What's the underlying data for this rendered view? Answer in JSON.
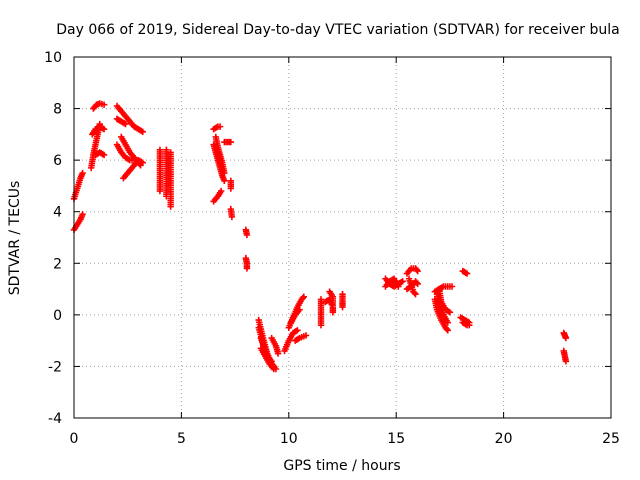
{
  "chart_data": {
    "type": "scatter",
    "title": "Day 066 of 2019, Sidereal Day-to-day VTEC variation (SDTVAR) for receiver bula",
    "xlabel": "GPS time / hours",
    "ylabel": "SDTVAR / TECUs",
    "xlim": [
      0,
      25
    ],
    "ylim": [
      -4,
      10
    ],
    "xticks": [
      "0",
      "5",
      "10",
      "15",
      "20",
      "25"
    ],
    "yticks": [
      "-4",
      "-2",
      "0",
      "2",
      "4",
      "6",
      "8",
      "10"
    ],
    "grid": true,
    "marker": "plus",
    "color": "#ff0000",
    "series": [
      {
        "name": "SDTVAR",
        "segments": [
          [
            [
              0.0,
              4.5
            ],
            [
              0.15,
              4.9
            ],
            [
              0.3,
              5.3
            ],
            [
              0.4,
              5.5
            ]
          ],
          [
            [
              0.0,
              3.3
            ],
            [
              0.15,
              3.5
            ],
            [
              0.3,
              3.7
            ],
            [
              0.4,
              3.9
            ]
          ],
          [
            [
              0.8,
              5.7
            ],
            [
              0.9,
              6.2
            ],
            [
              1.0,
              6.6
            ],
            [
              1.1,
              7.0
            ],
            [
              1.2,
              7.4
            ]
          ],
          [
            [
              0.85,
              7.0
            ],
            [
              1.0,
              7.2
            ],
            [
              1.2,
              7.3
            ],
            [
              1.4,
              7.2
            ]
          ],
          [
            [
              0.9,
              8.0
            ],
            [
              1.05,
              8.15
            ],
            [
              1.2,
              8.2
            ],
            [
              1.4,
              8.15
            ]
          ],
          [
            [
              1.0,
              6.2
            ],
            [
              1.2,
              6.3
            ],
            [
              1.4,
              6.2
            ]
          ],
          [
            [
              2.0,
              8.1
            ],
            [
              2.2,
              7.9
            ],
            [
              2.4,
              7.7
            ],
            [
              2.6,
              7.5
            ],
            [
              2.8,
              7.3
            ],
            [
              3.0,
              7.2
            ],
            [
              3.2,
              7.1
            ]
          ],
          [
            [
              2.0,
              7.6
            ],
            [
              2.2,
              7.5
            ],
            [
              2.4,
              7.4
            ]
          ],
          [
            [
              2.0,
              6.6
            ],
            [
              2.2,
              6.3
            ],
            [
              2.4,
              6.1
            ],
            [
              2.6,
              6.0
            ],
            [
              2.8,
              6.0
            ],
            [
              3.0,
              6.0
            ],
            [
              3.2,
              5.9
            ]
          ],
          [
            [
              2.2,
              6.9
            ],
            [
              2.4,
              6.6
            ],
            [
              2.6,
              6.3
            ],
            [
              2.8,
              6.1
            ],
            [
              3.0,
              5.9
            ],
            [
              3.1,
              5.8
            ]
          ],
          [
            [
              2.3,
              5.3
            ],
            [
              2.5,
              5.5
            ],
            [
              2.7,
              5.7
            ],
            [
              2.9,
              5.9
            ]
          ],
          [
            [
              4.0,
              6.4
            ],
            [
              4.0,
              6.0
            ],
            [
              4.0,
              5.6
            ],
            [
              4.0,
              5.2
            ],
            [
              4.0,
              4.8
            ]
          ],
          [
            [
              4.3,
              6.4
            ],
            [
              4.3,
              6.0
            ],
            [
              4.3,
              5.5
            ],
            [
              4.3,
              5.0
            ],
            [
              4.3,
              4.6
            ]
          ],
          [
            [
              4.5,
              6.3
            ],
            [
              4.5,
              5.8
            ],
            [
              4.5,
              5.2
            ],
            [
              4.5,
              4.6
            ],
            [
              4.5,
              4.2
            ]
          ],
          [
            [
              6.5,
              7.2
            ],
            [
              6.7,
              7.3
            ],
            [
              6.8,
              7.3
            ]
          ],
          [
            [
              6.5,
              6.6
            ],
            [
              6.6,
              6.3
            ],
            [
              6.7,
              6.0
            ],
            [
              6.8,
              5.7
            ],
            [
              6.9,
              5.4
            ],
            [
              7.0,
              5.2
            ]
          ],
          [
            [
              6.6,
              6.9
            ],
            [
              6.7,
              6.5
            ],
            [
              6.8,
              6.2
            ],
            [
              6.9,
              5.9
            ],
            [
              7.0,
              5.5
            ]
          ],
          [
            [
              6.5,
              4.4
            ],
            [
              6.7,
              4.6
            ],
            [
              6.85,
              4.8
            ]
          ],
          [
            [
              7.0,
              6.7
            ],
            [
              7.15,
              6.7
            ],
            [
              7.3,
              6.7
            ]
          ],
          [
            [
              7.3,
              5.2
            ],
            [
              7.3,
              4.9
            ]
          ],
          [
            [
              7.3,
              4.1
            ],
            [
              7.35,
              3.8
            ]
          ],
          [
            [
              8.0,
              3.3
            ],
            [
              8.05,
              3.1
            ]
          ],
          [
            [
              8.0,
              2.2
            ],
            [
              8.05,
              2.0
            ],
            [
              8.05,
              1.8
            ]
          ],
          [
            [
              8.6,
              -0.2
            ],
            [
              8.8,
              -0.9
            ],
            [
              9.0,
              -1.5
            ],
            [
              9.2,
              -1.9
            ],
            [
              9.4,
              -2.1
            ]
          ],
          [
            [
              8.6,
              -0.5
            ],
            [
              8.8,
              -1.1
            ],
            [
              9.0,
              -1.6
            ],
            [
              9.2,
              -1.8
            ]
          ],
          [
            [
              8.7,
              -0.9
            ],
            [
              8.9,
              -1.4
            ],
            [
              9.1,
              -1.8
            ],
            [
              9.3,
              -2.0
            ]
          ],
          [
            [
              8.7,
              -1.3
            ],
            [
              8.9,
              -1.6
            ],
            [
              9.1,
              -1.9
            ],
            [
              9.3,
              -2.1
            ]
          ],
          [
            [
              9.2,
              -0.9
            ],
            [
              9.4,
              -1.2
            ],
            [
              9.5,
              -1.5
            ]
          ],
          [
            [
              9.8,
              -1.4
            ],
            [
              10.0,
              -1.0
            ],
            [
              10.2,
              -0.7
            ],
            [
              10.4,
              -0.6
            ]
          ],
          [
            [
              10.0,
              -0.5
            ],
            [
              10.2,
              -0.1
            ],
            [
              10.4,
              0.3
            ],
            [
              10.6,
              0.6
            ],
            [
              10.7,
              0.7
            ]
          ],
          [
            [
              10.1,
              -0.3
            ],
            [
              10.3,
              0.0
            ],
            [
              10.5,
              0.2
            ]
          ],
          [
            [
              10.3,
              -1.0
            ],
            [
              10.5,
              -0.9
            ],
            [
              10.8,
              -0.8
            ]
          ],
          [
            [
              11.5,
              0.6
            ],
            [
              11.5,
              0.3
            ],
            [
              11.5,
              0.0
            ],
            [
              11.5,
              -0.4
            ]
          ],
          [
            [
              11.7,
              0.5
            ],
            [
              11.9,
              0.6
            ],
            [
              12.0,
              0.4
            ]
          ],
          [
            [
              11.9,
              0.9
            ],
            [
              12.05,
              0.7
            ],
            [
              12.05,
              0.3
            ],
            [
              12.05,
              0.1
            ]
          ],
          [
            [
              12.5,
              0.8
            ],
            [
              12.5,
              0.5
            ],
            [
              12.5,
              0.3
            ]
          ],
          [
            [
              14.5,
              1.4
            ],
            [
              14.7,
              1.2
            ],
            [
              14.9,
              1.1
            ],
            [
              15.1,
              1.2
            ],
            [
              15.3,
              1.3
            ]
          ],
          [
            [
              14.5,
              1.1
            ],
            [
              14.7,
              1.3
            ],
            [
              14.9,
              1.4
            ],
            [
              15.1,
              1.1
            ]
          ],
          [
            [
              15.5,
              1.6
            ],
            [
              15.7,
              1.8
            ],
            [
              15.9,
              1.8
            ],
            [
              16.0,
              1.7
            ]
          ],
          [
            [
              15.5,
              1.0
            ],
            [
              15.7,
              1.1
            ],
            [
              15.9,
              1.3
            ],
            [
              16.0,
              1.2
            ]
          ],
          [
            [
              15.6,
              1.4
            ],
            [
              15.8,
              0.9
            ],
            [
              15.9,
              0.8
            ]
          ],
          [
            [
              16.8,
              0.9
            ],
            [
              17.0,
              1.0
            ],
            [
              17.2,
              1.1
            ],
            [
              17.4,
              1.1
            ],
            [
              17.6,
              1.1
            ]
          ],
          [
            [
              16.8,
              0.6
            ],
            [
              16.9,
              0.2
            ],
            [
              17.1,
              -0.2
            ],
            [
              17.3,
              -0.5
            ],
            [
              17.4,
              -0.6
            ]
          ],
          [
            [
              16.9,
              0.8
            ],
            [
              17.0,
              0.3
            ],
            [
              17.2,
              0.0
            ],
            [
              17.4,
              -0.3
            ]
          ],
          [
            [
              17.0,
              1.0
            ],
            [
              17.1,
              0.5
            ],
            [
              17.3,
              0.2
            ],
            [
              17.5,
              0.1
            ]
          ],
          [
            [
              18.0,
              -0.1
            ],
            [
              18.2,
              -0.2
            ],
            [
              18.4,
              -0.3
            ]
          ],
          [
            [
              18.1,
              -0.3
            ],
            [
              18.3,
              -0.4
            ],
            [
              18.4,
              -0.4
            ]
          ],
          [
            [
              18.1,
              1.7
            ],
            [
              18.3,
              1.6
            ]
          ],
          [
            [
              22.8,
              -0.7
            ],
            [
              22.85,
              -0.8
            ],
            [
              22.9,
              -0.9
            ]
          ],
          [
            [
              22.8,
              -1.4
            ],
            [
              22.85,
              -1.6
            ],
            [
              22.9,
              -1.8
            ]
          ]
        ]
      }
    ]
  }
}
